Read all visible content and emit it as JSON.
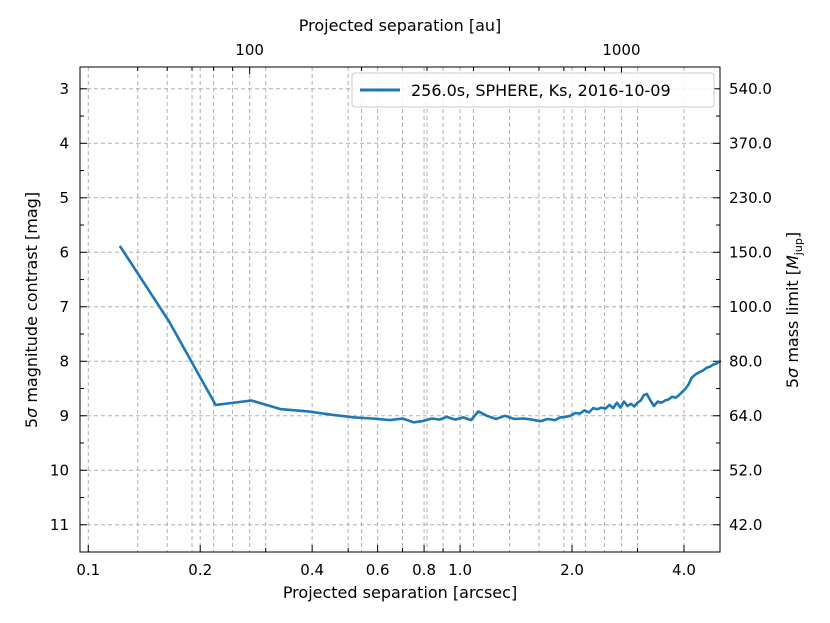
{
  "chart_data": {
    "type": "line",
    "title": "",
    "xlabel": "Projected separation [arcsec]",
    "ylabel_prefix": "5",
    "ylabel_sigma": "σ",
    "ylabel_rest": " magnitude contrast [mag]",
    "x2label": "Projected separation [au]",
    "y2label_prefix": "5",
    "y2label_sigma": "σ",
    "y2label_mid": " mass limit [",
    "y2label_M": "M",
    "y2label_sub": "jup",
    "y2label_end": "]",
    "x_scale": "log",
    "x_range": [
      0.095,
      5.0
    ],
    "y_range": [
      11.5,
      2.6
    ],
    "y_inverted": true,
    "grid": true,
    "legend_position": "top-right",
    "color": "#1f77b4",
    "x_major_ticks": [
      0.1,
      0.2,
      0.4,
      0.6,
      0.8,
      1.0,
      2.0,
      4.0
    ],
    "x_major_labels": [
      "0.1",
      "0.2",
      "0.4",
      "0.6",
      "0.8",
      "1.0",
      "2.0",
      "4.0"
    ],
    "x_minor_ticks": [
      0.3,
      0.5,
      0.7,
      0.9,
      3.0
    ],
    "y_ticks": [
      3,
      4,
      5,
      6,
      7,
      8,
      9,
      10,
      11
    ],
    "y_labels": [
      "3",
      "4",
      "5",
      "6",
      "7",
      "8",
      "9",
      "10",
      "11"
    ],
    "x2_ticks": [
      0.2716,
      2.716
    ],
    "x2_labels": [
      "100",
      "1000"
    ],
    "x2_minor_ticks": [
      0.1358,
      0.163,
      0.1901,
      0.2173,
      0.2444,
      0.5432,
      0.8148,
      1.0864,
      1.358,
      1.6296,
      1.9012,
      2.1728,
      2.4444
    ],
    "y2_ticks": [
      3.0,
      4.0,
      5.0,
      6.0,
      7.0,
      8.0,
      9.0,
      10.0,
      11.0
    ],
    "y2_labels": [
      "540.0",
      "370.0",
      "230.0",
      "150.0",
      "100.0",
      "80.0",
      "64.0",
      "52.0",
      "42.0"
    ],
    "series": [
      {
        "name": "256.0s, SPHERE, Ks, 2016-10-09",
        "x": [
          0.122,
          0.165,
          0.22,
          0.275,
          0.33,
          0.39,
          0.45,
          0.52,
          0.58,
          0.65,
          0.7,
          0.75,
          0.79,
          0.84,
          0.88,
          0.92,
          0.97,
          1.02,
          1.07,
          1.12,
          1.18,
          1.25,
          1.32,
          1.4,
          1.48,
          1.56,
          1.64,
          1.72,
          1.8,
          1.86,
          1.92,
          1.98,
          2.04,
          2.1,
          2.16,
          2.22,
          2.28,
          2.34,
          2.4,
          2.46,
          2.52,
          2.58,
          2.64,
          2.7,
          2.76,
          2.82,
          2.88,
          2.94,
          3.0,
          3.06,
          3.12,
          3.18,
          3.25,
          3.32,
          3.4,
          3.48,
          3.56,
          3.64,
          3.72,
          3.8,
          3.88,
          3.96,
          4.04,
          4.12,
          4.2,
          4.3,
          4.4,
          4.5,
          4.6,
          4.7,
          4.8,
          4.9,
          5.0
        ],
        "y": [
          5.9,
          7.27,
          8.8,
          8.72,
          8.88,
          8.92,
          8.98,
          9.03,
          9.05,
          9.08,
          9.05,
          9.12,
          9.1,
          9.05,
          9.07,
          9.02,
          9.07,
          9.03,
          9.08,
          8.92,
          9.0,
          9.06,
          9.0,
          9.06,
          9.05,
          9.07,
          9.1,
          9.06,
          9.08,
          9.03,
          9.02,
          9.0,
          8.95,
          8.96,
          8.9,
          8.94,
          8.86,
          8.88,
          8.85,
          8.87,
          8.8,
          8.86,
          8.76,
          8.85,
          8.74,
          8.82,
          8.78,
          8.83,
          8.76,
          8.72,
          8.62,
          8.6,
          8.72,
          8.82,
          8.74,
          8.76,
          8.72,
          8.7,
          8.65,
          8.67,
          8.62,
          8.56,
          8.5,
          8.42,
          8.3,
          8.24,
          8.2,
          8.17,
          8.12,
          8.1,
          8.06,
          8.04,
          8.0
        ]
      }
    ]
  }
}
